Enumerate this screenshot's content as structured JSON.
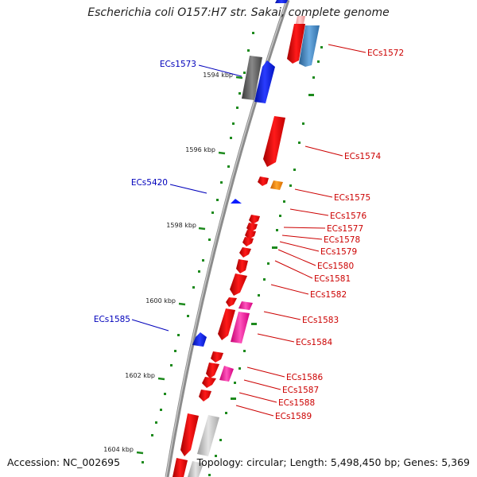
{
  "title": "Escherichia coli O157:H7 str. Sakai, complete genome",
  "footer": {
    "accession": "Accession: NC_002695",
    "topology": "Topology: circular; Length: 5,498,450 bp; Genes: 5,369"
  },
  "colors": {
    "backbone": "#8c8c8c",
    "tick": "#1d8a1d",
    "label_red": "#cc0000",
    "label_blue": "#0000bb",
    "red": "#ff0000",
    "blue": "#0b1cff",
    "steel": "#3f86c6",
    "pink": "#ff2aa6",
    "orange": "#ff8a00",
    "gray": "#bdbdbd",
    "dark_gray": "#555555"
  },
  "kbp_ticks": [
    "1594 kbp",
    "1596 kbp",
    "1598 kbp",
    "1600 kbp",
    "1602 kbp",
    "1604 kbp"
  ],
  "genes": [
    {
      "id": "ECs1572",
      "color": "steel"
    },
    {
      "id": "ECs1573",
      "color": "blue"
    },
    {
      "id": "ECs1574",
      "color": "red"
    },
    {
      "id": "ECs5420",
      "color": "blue"
    },
    {
      "id": "ECs1575",
      "color": "orange"
    },
    {
      "id": "ECs1576",
      "color": "red"
    },
    {
      "id": "ECs1577",
      "color": "red"
    },
    {
      "id": "ECs1578",
      "color": "red"
    },
    {
      "id": "ECs1579",
      "color": "red"
    },
    {
      "id": "ECs1580",
      "color": "red"
    },
    {
      "id": "ECs1581",
      "color": "red"
    },
    {
      "id": "ECs1582",
      "color": "red"
    },
    {
      "id": "ECs1583",
      "color": "pink"
    },
    {
      "id": "ECs1584",
      "color": "pink"
    },
    {
      "id": "ECs1585",
      "color": "blue"
    },
    {
      "id": "ECs1586",
      "color": "pink"
    },
    {
      "id": "ECs1587",
      "color": "red"
    },
    {
      "id": "ECs1588",
      "color": "red"
    },
    {
      "id": "ECs1589",
      "color": "red"
    }
  ]
}
